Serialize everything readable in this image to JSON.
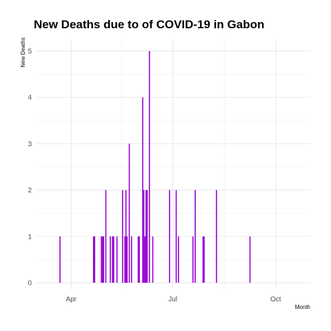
{
  "chart_data": {
    "type": "bar",
    "title": "New Deaths due to of COVID-19 in Gabon",
    "xlabel": "Month",
    "ylabel": "New Deaths",
    "bar_color": "#9400d3",
    "grid": true,
    "xlim": [
      "2020-03-01",
      "2020-11-01"
    ],
    "ylim": [
      0,
      5
    ],
    "x_ticks": [
      {
        "date": "2020-04-01",
        "label": "Apr"
      },
      {
        "date": "2020-07-01",
        "label": "Jul"
      },
      {
        "date": "2020-10-01",
        "label": "Oct"
      }
    ],
    "y_ticks": [
      {
        "value": 0,
        "label": "0"
      },
      {
        "value": 1,
        "label": "1"
      },
      {
        "value": 2,
        "label": "2"
      },
      {
        "value": 3,
        "label": "3"
      },
      {
        "value": 4,
        "label": "4"
      },
      {
        "value": 5,
        "label": "5"
      }
    ],
    "points": [
      {
        "date": "2020-03-22",
        "value": 1
      },
      {
        "date": "2020-04-21",
        "value": 1
      },
      {
        "date": "2020-04-22",
        "value": 1
      },
      {
        "date": "2020-04-28",
        "value": 1
      },
      {
        "date": "2020-04-29",
        "value": 1
      },
      {
        "date": "2020-04-30",
        "value": 1
      },
      {
        "date": "2020-05-02",
        "value": 2
      },
      {
        "date": "2020-05-06",
        "value": 1
      },
      {
        "date": "2020-05-08",
        "value": 1
      },
      {
        "date": "2020-05-09",
        "value": 1
      },
      {
        "date": "2020-05-12",
        "value": 1
      },
      {
        "date": "2020-05-17",
        "value": 2
      },
      {
        "date": "2020-05-19",
        "value": 1
      },
      {
        "date": "2020-05-20",
        "value": 2
      },
      {
        "date": "2020-05-21",
        "value": 1
      },
      {
        "date": "2020-05-23",
        "value": 3
      },
      {
        "date": "2020-05-25",
        "value": 1
      },
      {
        "date": "2020-05-31",
        "value": 1
      },
      {
        "date": "2020-06-01",
        "value": 1
      },
      {
        "date": "2020-06-04",
        "value": 4
      },
      {
        "date": "2020-06-05",
        "value": 2
      },
      {
        "date": "2020-06-06",
        "value": 1
      },
      {
        "date": "2020-06-07",
        "value": 2
      },
      {
        "date": "2020-06-08",
        "value": 2
      },
      {
        "date": "2020-06-10",
        "value": 5
      },
      {
        "date": "2020-06-13",
        "value": 1
      },
      {
        "date": "2020-06-28",
        "value": 2
      },
      {
        "date": "2020-07-04",
        "value": 2
      },
      {
        "date": "2020-07-06",
        "value": 1
      },
      {
        "date": "2020-07-19",
        "value": 1
      },
      {
        "date": "2020-07-21",
        "value": 2
      },
      {
        "date": "2020-07-28",
        "value": 1
      },
      {
        "date": "2020-07-29",
        "value": 1
      },
      {
        "date": "2020-08-09",
        "value": 2
      },
      {
        "date": "2020-09-08",
        "value": 1
      }
    ]
  }
}
